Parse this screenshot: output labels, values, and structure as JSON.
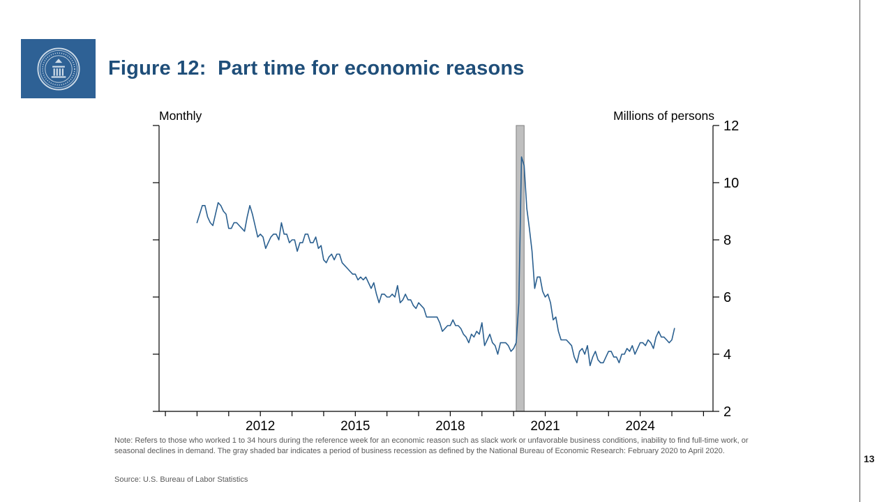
{
  "slide": {
    "title": "Figure 12:  Part time for economic reasons",
    "page_number": "13",
    "note": "Note: Refers to those who worked 1 to 34 hours during the reference week for an economic reason such as slack work or unfavorable business conditions, inability to find full-time work, or seasonal declines in demand. The gray shaded bar indicates a period of business recession as defined by the National Bureau of Economic Research: February 2020 to April 2020.",
    "source": "Source: U.S. Bureau of Labor Statistics",
    "logo_name": "federal-reserve-seal"
  },
  "colors": {
    "title": "#1f4e79",
    "logo_background": "#2e6195",
    "logo_seal": "#cfdce8",
    "line": "#2a5f8f",
    "axis": "#000000",
    "recession_fill": "#bfbfbf",
    "recession_stroke": "#7f7f7f",
    "note_text": "#595959"
  },
  "chart_data": {
    "type": "line",
    "title": "Part time for economic reasons",
    "frequency_label": "Monthly",
    "unit_label": "Millions of persons",
    "xlabel": "",
    "ylabel": "Millions of persons",
    "ylim": [
      2,
      12
    ],
    "x_range": [
      2008.8,
      2026.3
    ],
    "yticks": [
      12,
      10,
      8,
      6,
      4,
      2
    ],
    "xticks_labeled": [
      2012,
      2015,
      2018,
      2021,
      2024
    ],
    "xticks_minor_years": [
      2009,
      2010,
      2011,
      2012,
      2013,
      2014,
      2015,
      2016,
      2017,
      2018,
      2019,
      2020,
      2021,
      2022,
      2023,
      2024,
      2025,
      2026
    ],
    "grid": false,
    "legend": "none",
    "recession_band": {
      "label": "NBER recession: February 2020 to April 2020",
      "x": [
        2020.083,
        2020.333
      ]
    },
    "series": [
      {
        "name": "Part time for economic reasons (millions of persons)",
        "cadence": "monthly",
        "start": "2010-01",
        "end": "2025-02",
        "values": [
          8.6,
          8.9,
          9.2,
          9.2,
          8.8,
          8.6,
          8.5,
          8.9,
          9.3,
          9.2,
          9.0,
          8.9,
          8.4,
          8.4,
          8.6,
          8.6,
          8.5,
          8.4,
          8.3,
          8.8,
          9.2,
          8.9,
          8.5,
          8.1,
          8.2,
          8.1,
          7.7,
          7.9,
          8.1,
          8.2,
          8.2,
          8.0,
          8.6,
          8.2,
          8.2,
          7.9,
          8.0,
          8.0,
          7.6,
          7.9,
          7.9,
          8.2,
          8.2,
          7.9,
          7.9,
          8.1,
          7.7,
          7.8,
          7.3,
          7.2,
          7.4,
          7.5,
          7.3,
          7.5,
          7.5,
          7.2,
          7.1,
          7.0,
          6.9,
          6.8,
          6.8,
          6.6,
          6.7,
          6.6,
          6.7,
          6.5,
          6.3,
          6.5,
          6.1,
          5.8,
          6.1,
          6.1,
          6.0,
          6.0,
          6.1,
          6.0,
          6.4,
          5.8,
          5.9,
          6.1,
          5.9,
          5.9,
          5.7,
          5.6,
          5.8,
          5.7,
          5.6,
          5.3,
          5.3,
          5.3,
          5.3,
          5.3,
          5.1,
          4.8,
          4.9,
          5.0,
          5.0,
          5.2,
          5.0,
          5.0,
          4.9,
          4.7,
          4.6,
          4.4,
          4.7,
          4.6,
          4.8,
          4.7,
          5.1,
          4.3,
          4.5,
          4.7,
          4.4,
          4.3,
          4.0,
          4.4,
          4.4,
          4.4,
          4.3,
          4.1,
          4.2,
          4.4,
          5.8,
          10.9,
          10.6,
          9.1,
          8.4,
          7.6,
          6.3,
          6.7,
          6.7,
          6.2,
          6.0,
          6.1,
          5.8,
          5.2,
          5.3,
          4.8,
          4.5,
          4.5,
          4.5,
          4.4,
          4.3,
          3.9,
          3.7,
          4.1,
          4.2,
          4.0,
          4.3,
          3.6,
          3.9,
          4.1,
          3.8,
          3.7,
          3.7,
          3.9,
          4.1,
          4.1,
          3.9,
          3.9,
          3.7,
          4.0,
          4.0,
          4.2,
          4.1,
          4.3,
          4.0,
          4.2,
          4.4,
          4.4,
          4.3,
          4.5,
          4.4,
          4.2,
          4.6,
          4.8,
          4.6,
          4.6,
          4.5,
          4.4,
          4.5,
          4.9
        ],
        "x_start_year": 2010
      }
    ]
  }
}
